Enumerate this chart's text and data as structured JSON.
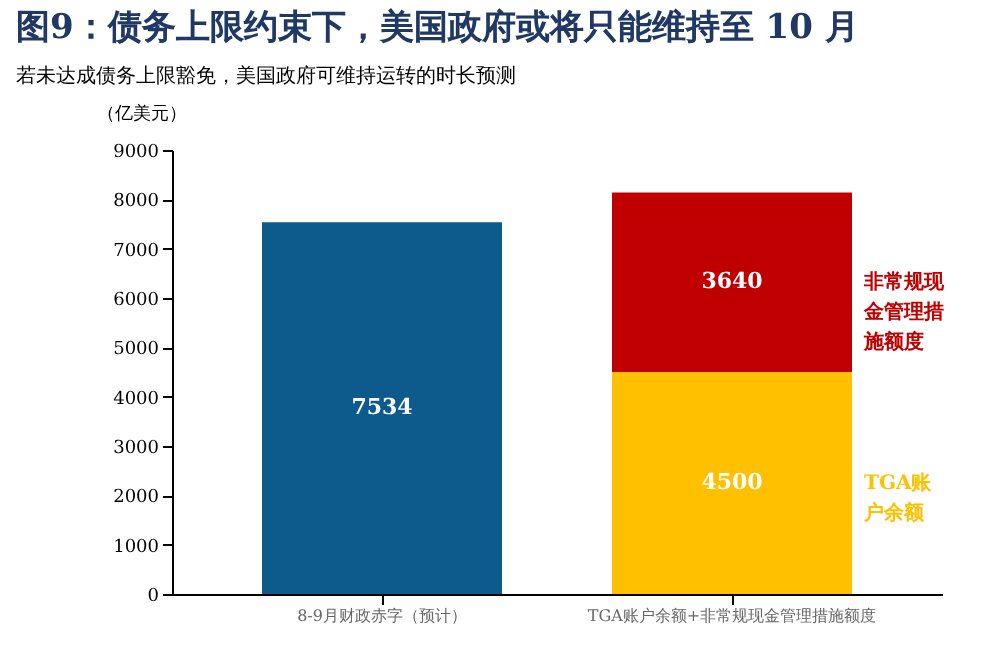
{
  "chart_data": {
    "type": "bar",
    "title": "图9：债务上限约束下，美国政府或将只能维持至 10 月",
    "subtitle": "若未达成债务上限豁免，美国政府可维持运转的时长预测",
    "ylabel": "（亿美元）",
    "categories": [
      "8-9月财政赤字（预计）",
      "TGA账户余额+非常规现金管理措施额度"
    ],
    "stacked": true,
    "data_labels": true,
    "grid": false,
    "series": [
      {
        "color": "#0d5a8c",
        "values": [
          7534,
          null
        ]
      },
      {
        "name": "TGA账户余额",
        "color": "#ffc000",
        "values": [
          null,
          4500
        ]
      },
      {
        "name": "非常规现金管理措施额度",
        "color": "#c00000",
        "values": [
          null,
          3640
        ]
      }
    ],
    "ylim": [
      0,
      9000
    ],
    "yticks": [
      0,
      1000,
      2000,
      3000,
      4000,
      5000,
      6000,
      7000,
      8000,
      9000
    ]
  }
}
